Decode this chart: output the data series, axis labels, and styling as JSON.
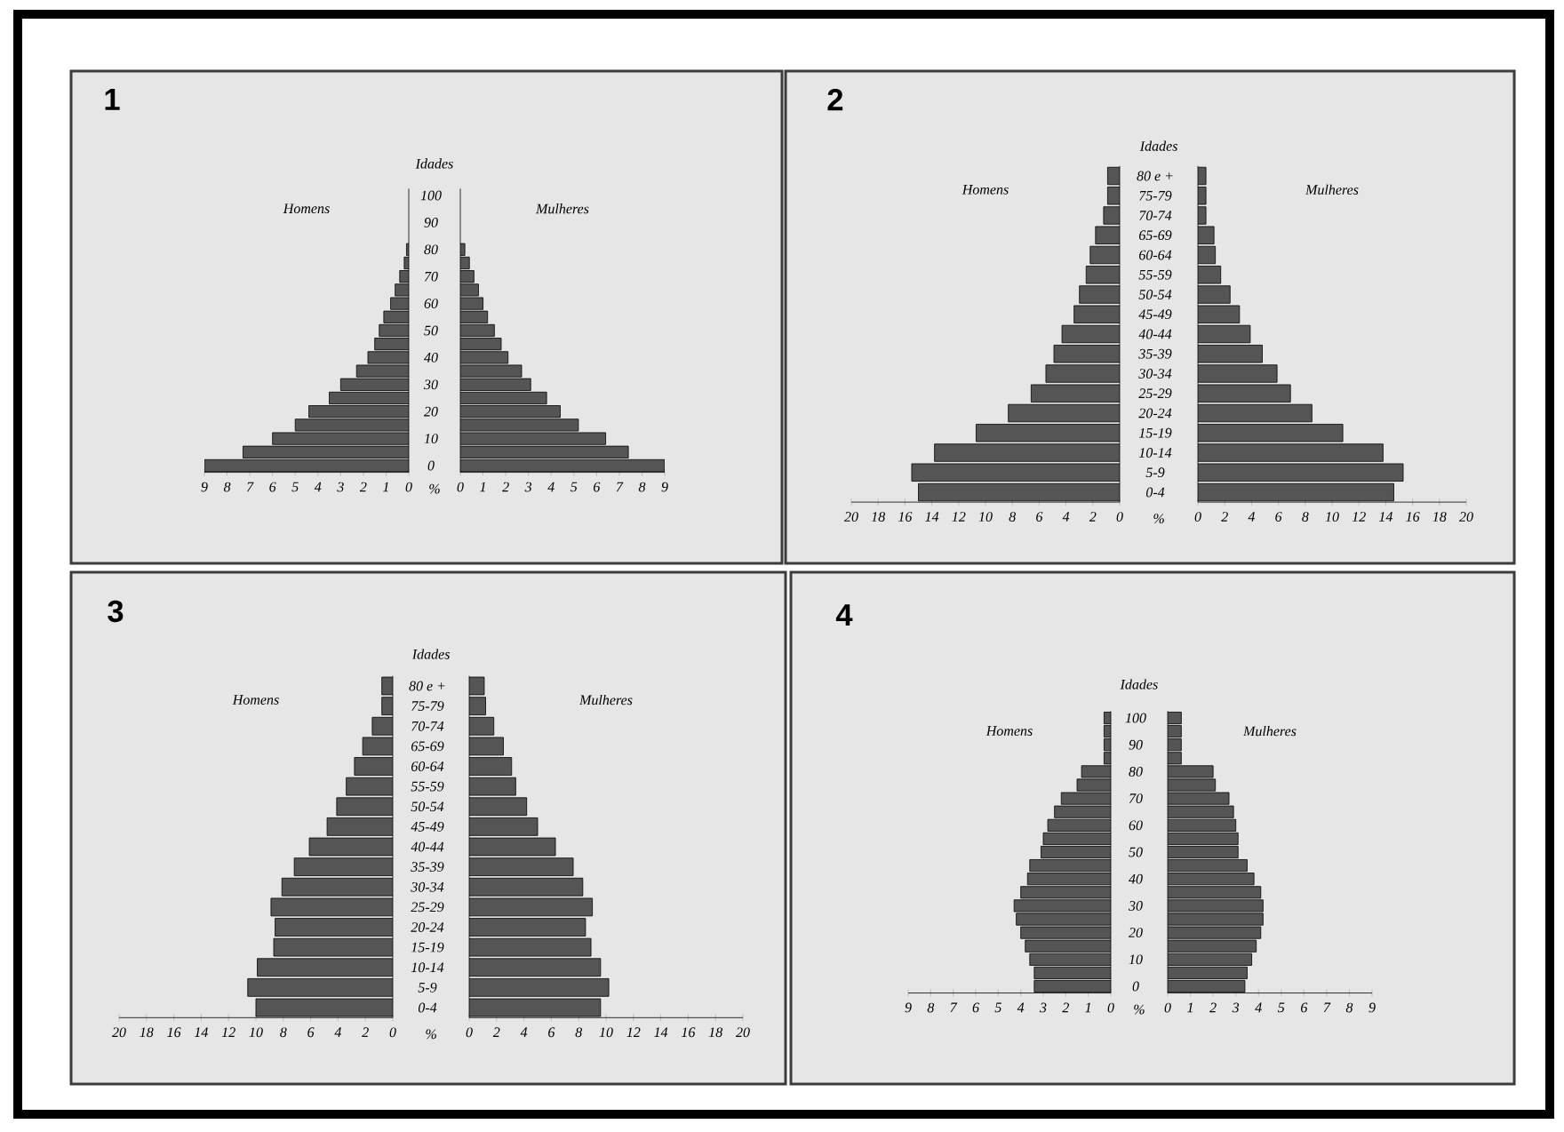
{
  "chart_data": [
    {
      "type": "bar",
      "orientation": "horizontal",
      "title": "1",
      "ylabel": "Idades",
      "xlabel": "%",
      "categories": [
        "100",
        null,
        "90",
        null,
        "80",
        null,
        "70",
        null,
        "60",
        null,
        "50",
        null,
        "40",
        null,
        "30",
        null,
        "20",
        null,
        "10",
        null,
        "0"
      ],
      "series": [
        {
          "name": "Homens",
          "color": "#555555",
          "values": [
            null,
            null,
            null,
            null,
            0.1,
            0.2,
            0.4,
            0.6,
            0.8,
            1.1,
            1.3,
            1.5,
            1.8,
            2.3,
            3.0,
            3.5,
            4.4,
            5.0,
            6.0,
            7.3,
            9.0
          ]
        }
      ],
      "xlim": [
        9,
        0
      ],
      "xticks": [
        9,
        8,
        7,
        6,
        5,
        4,
        3,
        2,
        1,
        0
      ]
    },
    {
      "type": "bar",
      "orientation": "horizontal",
      "categories": [
        null,
        null,
        null,
        null,
        null,
        null,
        null,
        null,
        null,
        null,
        null,
        null,
        null,
        null,
        null,
        null,
        null,
        null,
        null,
        null,
        null
      ],
      "series": [
        {
          "name": "Mulheres",
          "color": "#555555",
          "values": [
            null,
            null,
            null,
            null,
            0.2,
            0.4,
            0.6,
            0.8,
            1.0,
            1.2,
            1.5,
            1.8,
            2.1,
            2.7,
            3.1,
            3.8,
            4.4,
            5.2,
            6.4,
            7.4,
            9.0
          ]
        }
      ],
      "xlim": [
        0,
        9
      ],
      "xticks": [
        0,
        1,
        2,
        3,
        4,
        5,
        6,
        7,
        8,
        9
      ],
      "tick_labels": "x"
    },
    {
      "type": "bar",
      "orientation": "horizontal",
      "title": "2",
      "ylabel": "Idades",
      "xlabel": "%",
      "categories": [
        "80 e +",
        "75-79",
        "70-74",
        "65-69",
        "60-64",
        "55-59",
        "50-54",
        "45-49",
        "40-44",
        "35-39",
        "30-34",
        "25-29",
        "20-24",
        "15-19",
        "10-14",
        "5-9",
        "0-4"
      ],
      "series": [
        {
          "name": "Homens",
          "color": "#555555",
          "values": [
            0.9,
            0.9,
            1.2,
            1.8,
            2.2,
            2.5,
            3.0,
            3.4,
            4.3,
            4.9,
            5.5,
            6.6,
            8.3,
            10.7,
            13.8,
            15.5,
            15.0
          ]
        }
      ],
      "xlim": [
        20,
        0
      ],
      "xticks": [
        20,
        18,
        16,
        14,
        12,
        10,
        8,
        6,
        4,
        2,
        0
      ]
    },
    {
      "type": "bar",
      "orientation": "horizontal",
      "categories": [
        null,
        null,
        null,
        null,
        null,
        null,
        null,
        null,
        null,
        null,
        null,
        null,
        null,
        null,
        null,
        null,
        null
      ],
      "series": [
        {
          "name": "Mulheres",
          "color": "#555555",
          "values": [
            0.6,
            0.6,
            0.6,
            1.2,
            1.3,
            1.7,
            2.4,
            3.1,
            3.9,
            4.8,
            5.9,
            6.9,
            8.5,
            10.8,
            13.8,
            15.3,
            14.6
          ]
        }
      ],
      "xlim": [
        0,
        20
      ],
      "xticks": [
        0,
        2,
        4,
        6,
        8,
        10,
        12,
        14,
        16,
        18,
        20
      ],
      "tick_labels": "x"
    },
    {
      "type": "bar",
      "orientation": "horizontal",
      "title": "3",
      "ylabel": "Idades",
      "xlabel": "%",
      "categories": [
        "80 e +",
        "75-79",
        "70-74",
        "65-69",
        "60-64",
        "55-59",
        "50-54",
        "45-49",
        "40-44",
        "35-39",
        "30-34",
        "25-29",
        "20-24",
        "15-19",
        "10-14",
        "5-9",
        "0-4"
      ],
      "series": [
        {
          "name": "Homens",
          "color": "#555555",
          "values": [
            0.8,
            0.8,
            1.5,
            2.2,
            2.8,
            3.4,
            4.1,
            4.8,
            6.1,
            7.2,
            8.1,
            8.9,
            8.6,
            8.7,
            9.9,
            10.6,
            10.0
          ]
        }
      ],
      "xlim": [
        20,
        0
      ],
      "xticks": [
        20,
        18,
        16,
        14,
        12,
        10,
        8,
        6,
        4,
        2,
        0
      ]
    },
    {
      "type": "bar",
      "orientation": "horizontal",
      "categories": [
        null,
        null,
        null,
        null,
        null,
        null,
        null,
        null,
        null,
        null,
        null,
        null,
        null,
        null,
        null,
        null,
        null
      ],
      "series": [
        {
          "name": "Mulheres",
          "color": "#555555",
          "values": [
            1.1,
            1.2,
            1.8,
            2.5,
            3.1,
            3.4,
            4.2,
            5.0,
            6.3,
            7.6,
            8.3,
            9.0,
            8.5,
            8.9,
            9.6,
            10.2,
            9.6
          ]
        }
      ],
      "xlim": [
        0,
        20
      ],
      "xticks": [
        0,
        2,
        4,
        6,
        8,
        10,
        12,
        14,
        16,
        18,
        20
      ],
      "tick_labels": "x"
    },
    {
      "type": "bar",
      "orientation": "horizontal",
      "title": "4",
      "ylabel": "Idades",
      "xlabel": "%",
      "categories": [
        "100",
        null,
        "90",
        null,
        "80",
        null,
        "70",
        null,
        "60",
        null,
        "50",
        null,
        "40",
        null,
        "30",
        null,
        "20",
        null,
        "10",
        null,
        "0"
      ],
      "series": [
        {
          "name": "Homens",
          "color": "#555555",
          "values": [
            0.3,
            0.3,
            0.3,
            0.3,
            1.3,
            1.5,
            2.2,
            2.5,
            2.8,
            3.0,
            3.1,
            3.6,
            3.7,
            4.0,
            4.3,
            4.2,
            4.0,
            3.8,
            3.6,
            3.4,
            3.4
          ]
        }
      ],
      "xlim": [
        9,
        0
      ],
      "xticks": [
        9,
        8,
        7,
        6,
        5,
        4,
        3,
        2,
        1,
        0
      ]
    },
    {
      "type": "bar",
      "orientation": "horizontal",
      "categories": [
        null,
        null,
        null,
        null,
        null,
        null,
        null,
        null,
        null,
        null,
        null,
        null,
        null,
        null,
        null,
        null,
        null,
        null,
        null,
        null,
        null
      ],
      "series": [
        {
          "name": "Mulheres",
          "color": "#555555",
          "values": [
            0.6,
            0.6,
            0.6,
            0.6,
            2.0,
            2.1,
            2.7,
            2.9,
            3.0,
            3.1,
            3.1,
            3.5,
            3.8,
            4.1,
            4.2,
            4.2,
            4.1,
            3.9,
            3.7,
            3.5,
            3.4
          ]
        }
      ],
      "xlim": [
        0,
        9
      ],
      "xticks": [
        0,
        1,
        2,
        3,
        4,
        5,
        6,
        7,
        8,
        9
      ],
      "tick_labels": "x"
    }
  ]
}
